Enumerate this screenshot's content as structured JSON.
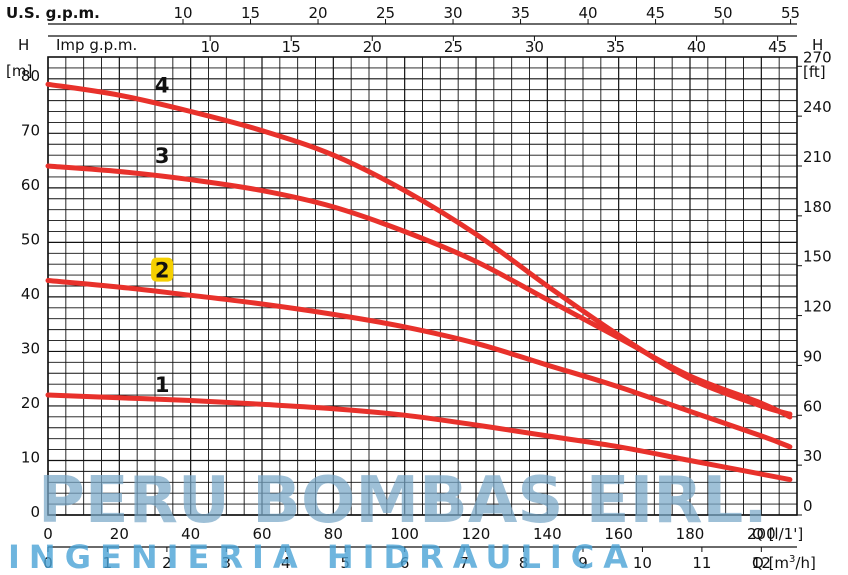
{
  "chart_data": {
    "type": "line",
    "top_axis_usgpm": {
      "label": "U.S.  g.p.m.",
      "ticks": [
        "10",
        "15",
        "20",
        "25",
        "30",
        "35",
        "40",
        "45",
        "50",
        "55"
      ]
    },
    "top_axis_impgpm": {
      "label": "Imp  g.p.m.",
      "ticks": [
        "10",
        "15",
        "20",
        "25",
        "30",
        "35",
        "40",
        "45"
      ]
    },
    "left_axis": {
      "label": "H",
      "unit": "[m]",
      "ticks": [
        "0",
        "10",
        "20",
        "30",
        "40",
        "50",
        "60",
        "70",
        "80"
      ]
    },
    "right_axis": {
      "label": "H",
      "unit": "[ft]",
      "ticks": [
        "0",
        "30",
        "60",
        "90",
        "120",
        "150",
        "180",
        "210",
        "240",
        "270"
      ]
    },
    "bottom_axis_lmin": {
      "label": "Q [l/1']",
      "ticks": [
        "0",
        "20",
        "40",
        "60",
        "80",
        "100",
        "120",
        "140",
        "160",
        "180",
        "200"
      ]
    },
    "bottom_axis_m3h": {
      "label_prefix": "Q [m",
      "label_sup": "3",
      "label_suffix": "/h]",
      "ticks": [
        "0",
        "1",
        "2",
        "3",
        "4",
        "5",
        "6",
        "7",
        "8",
        "9",
        "10",
        "11",
        "12"
      ]
    },
    "xlim": [
      0,
      210
    ],
    "ylim": [
      0,
      84
    ],
    "grid": true,
    "line_color": "#e8312b",
    "highlight_color": "#f5d000",
    "series": [
      {
        "name": "1",
        "x": [
          0,
          20,
          40,
          60,
          80,
          100,
          120,
          140,
          160,
          180,
          200,
          208
        ],
        "y": [
          22,
          21.5,
          21,
          20.3,
          19.5,
          18.3,
          16.5,
          14.5,
          12.5,
          10,
          7.5,
          6.5
        ]
      },
      {
        "name": "2",
        "x": [
          0,
          20,
          40,
          60,
          80,
          100,
          120,
          140,
          160,
          180,
          200,
          208
        ],
        "y": [
          43,
          41.8,
          40.3,
          38.7,
          36.8,
          34.5,
          31.5,
          27.5,
          23.5,
          19,
          14.5,
          12.5
        ]
      },
      {
        "name": "3",
        "x": [
          0,
          20,
          40,
          60,
          80,
          100,
          120,
          140,
          160,
          180,
          200,
          208
        ],
        "y": [
          64,
          63,
          61.5,
          59.5,
          56.5,
          52,
          46.5,
          39.5,
          32.5,
          25.5,
          20.5,
          18
        ]
      },
      {
        "name": "4",
        "x": [
          0,
          20,
          40,
          60,
          80,
          100,
          120,
          140,
          160,
          180,
          200,
          208
        ],
        "y": [
          79,
          77,
          74,
          70.5,
          66,
          59.5,
          51.5,
          42,
          33,
          25,
          20,
          18.5
        ]
      }
    ],
    "curve_label_positions": [
      {
        "name": "1",
        "x": 32,
        "y": 24,
        "highlight": false
      },
      {
        "name": "2",
        "x": 32,
        "y": 45,
        "highlight": true
      },
      {
        "name": "3",
        "x": 32,
        "y": 66,
        "highlight": false
      },
      {
        "name": "4",
        "x": 32,
        "y": 79,
        "highlight": false
      }
    ]
  },
  "watermark": {
    "line1": "PERU BOMBAS EIRL.",
    "line2": "INGENIERIA HIDRAULICA"
  }
}
